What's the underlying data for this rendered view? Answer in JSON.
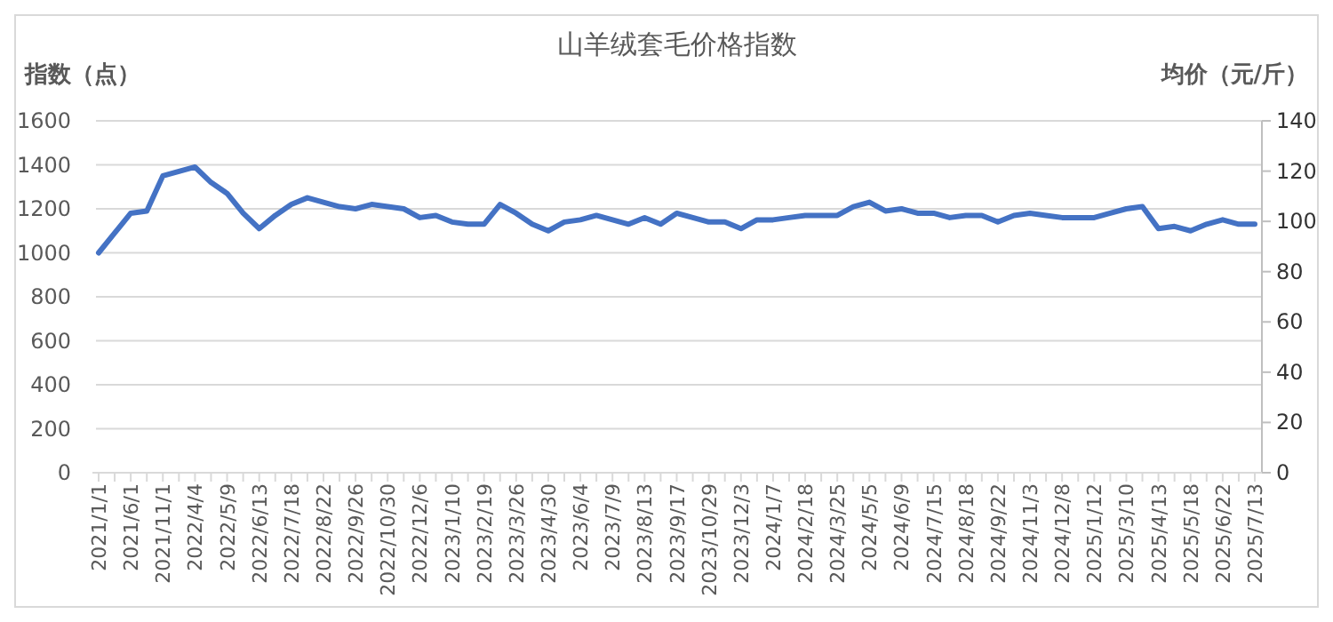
{
  "chart_data": {
    "type": "line",
    "title": "山羊绒套毛价格指数",
    "ylabel": "指数（点）",
    "y2label": "均价（元/斤）",
    "categories": [
      "2021/1/1",
      null,
      "2021/6/1",
      null,
      "2021/11/1",
      null,
      "2022/4/4",
      null,
      "2022/5/9",
      null,
      "2022/6/13",
      null,
      "2022/7/18",
      null,
      "2022/8/22",
      null,
      "2022/9/26",
      null,
      "2022/10/30",
      null,
      "2022/12/6",
      null,
      "2023/1/10",
      null,
      "2023/2/19",
      null,
      "2023/3/26",
      null,
      "2023/4/30",
      null,
      "2023/6/4",
      null,
      "2023/7/9",
      null,
      "2023/8/13",
      null,
      "2023/9/17",
      null,
      "2023/10/29",
      null,
      "2023/12/3",
      null,
      "2024/1/7",
      null,
      "2024/2/18",
      null,
      "2024/3/25",
      null,
      "2024/5/5",
      null,
      "2024/6/9",
      null,
      "2024/7/15",
      null,
      "2024/8/18",
      null,
      "2024/9/22",
      null,
      "2024/11/3",
      null,
      "2024/12/8",
      null,
      "2025/1/12",
      null,
      "2025/3/10",
      null,
      "2025/4/13",
      null,
      "2025/5/18",
      null,
      "2025/6/22",
      null,
      "2025/7/13"
    ],
    "series": [
      {
        "color": "#4472c4",
        "values": [
          1000,
          1090,
          1180,
          1190,
          1350,
          1370,
          1390,
          1320,
          1270,
          1180,
          1110,
          1170,
          1220,
          1250,
          1230,
          1210,
          1200,
          1220,
          1210,
          1200,
          1160,
          1170,
          1140,
          1130,
          1130,
          1220,
          1180,
          1130,
          1100,
          1140,
          1150,
          1170,
          1150,
          1130,
          1160,
          1130,
          1180,
          1160,
          1140,
          1140,
          1110,
          1150,
          1150,
          1160,
          1170,
          1170,
          1170,
          1210,
          1230,
          1190,
          1200,
          1180,
          1180,
          1160,
          1170,
          1170,
          1140,
          1170,
          1180,
          1170,
          1160,
          1160,
          1160,
          1180,
          1200,
          1210,
          1110,
          1120,
          1100,
          1130,
          1150,
          1130,
          1130
        ]
      }
    ],
    "ylim": [
      0,
      1600
    ],
    "yticks": [
      0,
      200,
      400,
      600,
      800,
      1000,
      1200,
      1400,
      1600
    ],
    "y2lim": [
      0,
      140
    ],
    "y2ticks": [
      0,
      20,
      40,
      60,
      80,
      100,
      120,
      140
    ],
    "grid": "y",
    "marker": "none",
    "line_style": "solid"
  }
}
